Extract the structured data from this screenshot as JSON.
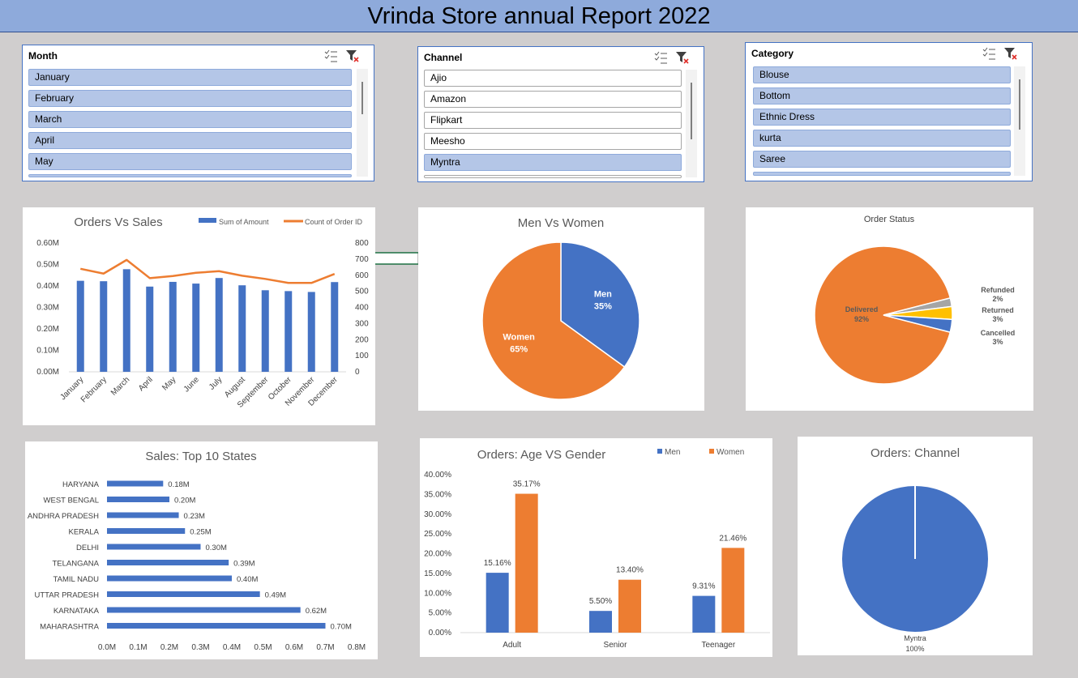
{
  "report_title": "Vrinda Store annual Report 2022",
  "slicers": {
    "month": {
      "header": "Month",
      "items": [
        "January",
        "February",
        "March",
        "April",
        "May"
      ],
      "selected": [
        true,
        true,
        true,
        true,
        true
      ]
    },
    "channel": {
      "header": "Channel",
      "items": [
        "Ajio",
        "Amazon",
        "Flipkart",
        "Meesho",
        "Myntra"
      ],
      "selected": [
        false,
        false,
        false,
        false,
        true
      ]
    },
    "category": {
      "header": "Category",
      "items": [
        "Blouse",
        "Bottom",
        "Ethnic Dress",
        "kurta",
        "Saree"
      ],
      "selected": [
        true,
        true,
        true,
        true,
        true
      ]
    }
  },
  "colors": {
    "blue": "#4472c4",
    "orange": "#ed7d31",
    "gray": "#a5a5a5",
    "yellow": "#ffc000"
  },
  "chart_data": [
    {
      "id": "orders_vs_sales",
      "type": "bar",
      "title": "Orders Vs Sales",
      "categories": [
        "January",
        "February",
        "March",
        "April",
        "May",
        "June",
        "July",
        "August",
        "September",
        "October",
        "November",
        "December"
      ],
      "series": [
        {
          "name": "Sum of Amount",
          "type": "bar",
          "axis": "left",
          "values": [
            0.424,
            0.422,
            0.478,
            0.397,
            0.419,
            0.411,
            0.437,
            0.403,
            0.38,
            0.376,
            0.372,
            0.418
          ]
        },
        {
          "name": "Count of Order ID",
          "type": "line",
          "axis": "right",
          "values": [
            640,
            610,
            695,
            582,
            595,
            615,
            625,
            597,
            577,
            552,
            552,
            608
          ]
        }
      ],
      "y_left": {
        "ticks": [
          "0.00M",
          "0.10M",
          "0.20M",
          "0.30M",
          "0.40M",
          "0.50M",
          "0.60M"
        ],
        "ylim": [
          0,
          0.6
        ]
      },
      "y_right": {
        "ticks": [
          "0",
          "100",
          "200",
          "300",
          "400",
          "500",
          "600",
          "700",
          "800"
        ],
        "ylim": [
          0,
          800
        ]
      },
      "legend": "top-right"
    },
    {
      "id": "men_vs_women",
      "type": "pie",
      "title": "Men Vs Women",
      "slices": [
        {
          "label": "Men",
          "value": 35,
          "pct": "35%"
        },
        {
          "label": "Women",
          "value": 65,
          "pct": "65%"
        }
      ]
    },
    {
      "id": "order_status",
      "type": "pie",
      "title": "Order Status",
      "slices": [
        {
          "label": "Delivered",
          "value": 92,
          "pct": "92%"
        },
        {
          "label": "Refunded",
          "value": 2,
          "pct": "2%"
        },
        {
          "label": "Returned",
          "value": 3,
          "pct": "3%"
        },
        {
          "label": "Cancelled",
          "value": 3,
          "pct": "3%"
        }
      ]
    },
    {
      "id": "top_states",
      "type": "bar",
      "orientation": "horizontal",
      "title": "Sales: Top 10 States",
      "categories": [
        "HARYANA",
        "WEST BENGAL",
        "ANDHRA PRADESH",
        "KERALA",
        "DELHI",
        "TELANGANA",
        "TAMIL NADU",
        "UTTAR PRADESH",
        "KARNATAKA",
        "MAHARASHTRA"
      ],
      "values": [
        0.18,
        0.2,
        0.23,
        0.25,
        0.3,
        0.39,
        0.4,
        0.49,
        0.62,
        0.7
      ],
      "labels": [
        "0.18M",
        "0.20M",
        "0.23M",
        "0.25M",
        "0.30M",
        "0.39M",
        "0.40M",
        "0.49M",
        "0.62M",
        "0.70M"
      ],
      "x_ticks": [
        "0.0M",
        "0.1M",
        "0.2M",
        "0.3M",
        "0.4M",
        "0.5M",
        "0.6M",
        "0.7M",
        "0.8M"
      ],
      "xlim": [
        0,
        0.8
      ]
    },
    {
      "id": "age_vs_gender",
      "type": "bar",
      "title": "Orders: Age VS Gender",
      "categories": [
        "Adult",
        "Senior",
        "Teenager"
      ],
      "series": [
        {
          "name": "Men",
          "values": [
            15.16,
            5.5,
            9.31
          ],
          "labels": [
            "15.16%",
            "5.50%",
            "9.31%"
          ]
        },
        {
          "name": "Women",
          "values": [
            35.17,
            13.4,
            21.46
          ],
          "labels": [
            "35.17%",
            "13.40%",
            "21.46%"
          ]
        }
      ],
      "y_ticks": [
        "0.00%",
        "5.00%",
        "10.00%",
        "15.00%",
        "20.00%",
        "25.00%",
        "30.00%",
        "35.00%",
        "40.00%"
      ],
      "ylim": [
        0,
        40
      ],
      "legend": "top-right"
    },
    {
      "id": "orders_channel",
      "type": "pie",
      "title": "Orders: Channel",
      "slices": [
        {
          "label": "Myntra",
          "value": 100,
          "pct": "100%"
        }
      ]
    }
  ]
}
